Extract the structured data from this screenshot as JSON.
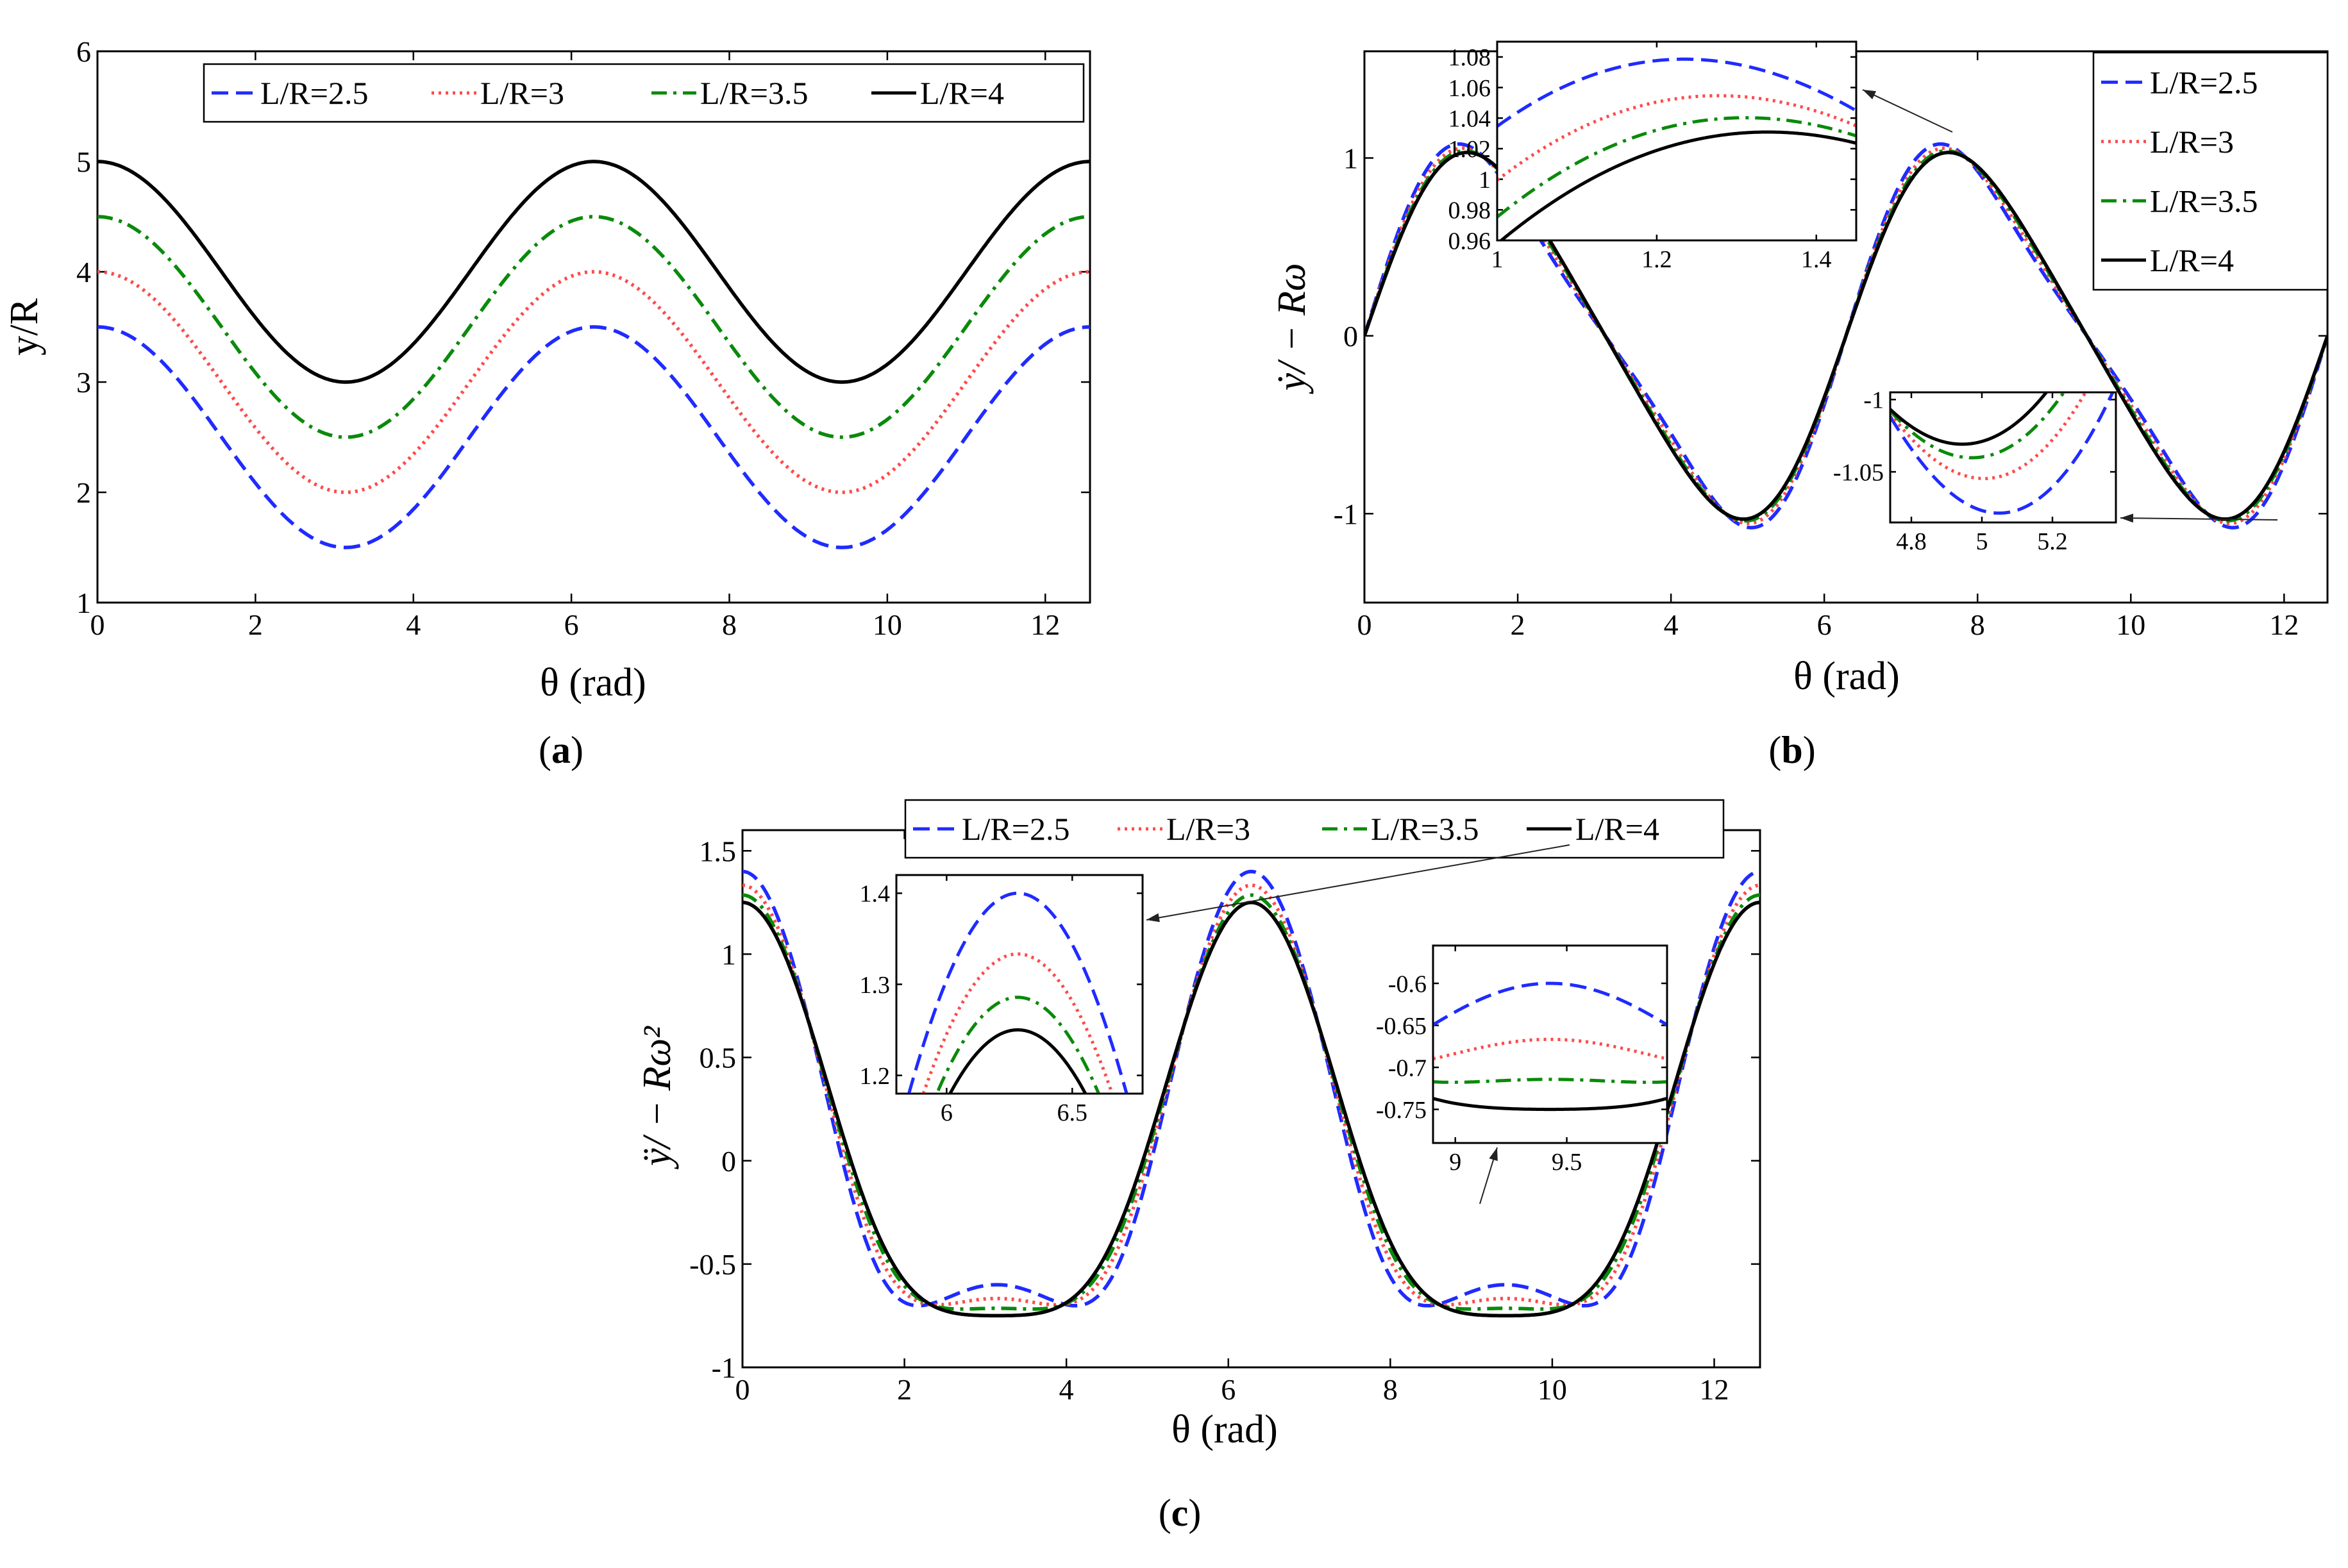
{
  "figure": {
    "labels": {
      "a": "(a)",
      "b": "(b)",
      "c": "(c)"
    },
    "panel_letters": {
      "a": "a",
      "b": "b",
      "c": "c"
    },
    "colors": {
      "L/R=2.5": "#1f2bff",
      "L/R=3": "#ff4a4a",
      "L/R=3.5": "#0a8a0a",
      "L/R=4": "#000000"
    }
  },
  "chart_data": [
    {
      "id": "a",
      "type": "line",
      "title": "",
      "xlabel": "θ (rad)",
      "ylabel": "y/R",
      "xlim": [
        0,
        12.566
      ],
      "ylim": [
        1,
        6
      ],
      "xticks": [
        0,
        2,
        4,
        6,
        8,
        10,
        12
      ],
      "yticks": [
        1,
        2,
        3,
        4,
        5,
        6
      ],
      "legend": {
        "placement": "top",
        "layout": "horizontal"
      },
      "formula": "y/R = cos(theta) + L/R",
      "series": [
        {
          "name": "L/R=2.5",
          "L_over_R": 2.5,
          "style": "dashed",
          "color": "#1f2bff"
        },
        {
          "name": "L/R=3",
          "L_over_R": 3,
          "style": "dotted",
          "color": "#ff4a4a"
        },
        {
          "name": "L/R=3.5",
          "L_over_R": 3.5,
          "style": "dashdot",
          "color": "#0a8a0a"
        },
        {
          "name": "L/R=4",
          "L_over_R": 4,
          "style": "solid",
          "color": "#000000"
        }
      ]
    },
    {
      "id": "b",
      "type": "line",
      "title": "",
      "xlabel": "θ (rad)",
      "ylabel": "ẏ/ − Rω",
      "xlim": [
        0,
        12.566
      ],
      "ylim": [
        -1.5,
        1.6
      ],
      "xticks": [
        0,
        2,
        4,
        6,
        8,
        10,
        12
      ],
      "yticks": [
        -1,
        0,
        1
      ],
      "legend": {
        "placement": "top-right",
        "layout": "vertical"
      },
      "formula": "v = sin(theta) + sin(2theta) / (2 sqrt((L/R)^2 - sin^2(theta)))",
      "series": [
        {
          "name": "L/R=2.5",
          "L_over_R": 2.5,
          "style": "dashed",
          "color": "#1f2bff"
        },
        {
          "name": "L/R=3",
          "L_over_R": 3,
          "style": "dotted",
          "color": "#ff4a4a"
        },
        {
          "name": "L/R=3.5",
          "L_over_R": 3.5,
          "style": "dashdot",
          "color": "#0a8a0a"
        },
        {
          "name": "L/R=4",
          "L_over_R": 4,
          "style": "solid",
          "color": "#000000"
        }
      ],
      "insets": [
        {
          "xlim": [
            1,
            1.45
          ],
          "ylim": [
            0.96,
            1.09
          ],
          "xticks": [
            1,
            1.2,
            1.4
          ],
          "xtick_labels": [
            "1",
            "1.2",
            "1.4"
          ],
          "yticks": [
            0.96,
            0.98,
            1,
            1.02,
            1.04,
            1.06,
            1.08
          ],
          "ytick_labels": [
            "0.96",
            "0.98",
            "1",
            "1.02",
            "1.04",
            "1.06",
            "1.08"
          ]
        },
        {
          "xlim": [
            4.74,
            5.38
          ],
          "ylim": [
            -1.085,
            -0.995
          ],
          "xticks": [
            4.8,
            5,
            5.2
          ],
          "xtick_labels": [
            "4.8",
            "5",
            "5.2"
          ],
          "yticks": [
            -1,
            -1.05
          ],
          "ytick_labels": [
            "-1",
            "-1.05"
          ]
        }
      ]
    },
    {
      "id": "c",
      "type": "line",
      "title": "",
      "xlabel": "θ (rad)",
      "ylabel": "ÿ/ − Rω²",
      "xlim": [
        0,
        12.566
      ],
      "ylim": [
        -1,
        1.6
      ],
      "xticks": [
        0,
        2,
        4,
        6,
        8,
        10,
        12
      ],
      "yticks": [
        -1,
        -0.5,
        0,
        0.5,
        1,
        1.5
      ],
      "ytick_labels": [
        "-1",
        "-0.5",
        "0",
        "0.5",
        "1",
        "1.5"
      ],
      "legend": {
        "placement": "top",
        "layout": "horizontal"
      },
      "formula": "a = cos(theta) + cos(2theta)/sqrt(k^2 - sin^2) + sin^2(2theta)/(4 (k^2 - sin^2)^1.5)",
      "series": [
        {
          "name": "L/R=2.5",
          "L_over_R": 2.5,
          "style": "dashed",
          "color": "#1f2bff"
        },
        {
          "name": "L/R=3",
          "L_over_R": 3,
          "style": "dotted",
          "color": "#ff4a4a"
        },
        {
          "name": "L/R=3.5",
          "L_over_R": 3.5,
          "style": "dashdot",
          "color": "#0a8a0a"
        },
        {
          "name": "L/R=4",
          "L_over_R": 4,
          "style": "solid",
          "color": "#000000"
        }
      ],
      "insets": [
        {
          "xlim": [
            5.8,
            6.78
          ],
          "ylim": [
            1.18,
            1.42
          ],
          "xticks": [
            6,
            6.5
          ],
          "xtick_labels": [
            "6",
            "6.5"
          ],
          "yticks": [
            1.2,
            1.3,
            1.4
          ],
          "ytick_labels": [
            "1.2",
            "1.3",
            "1.4"
          ]
        },
        {
          "xlim": [
            8.9,
            9.95
          ],
          "ylim": [
            -0.79,
            -0.555
          ],
          "xticks": [
            9,
            9.5
          ],
          "xtick_labels": [
            "9",
            "9.5"
          ],
          "yticks": [
            -0.6,
            -0.65,
            -0.7,
            -0.75
          ],
          "ytick_labels": [
            "-0.6",
            "-0.65",
            "-0.7",
            "-0.75"
          ]
        }
      ]
    }
  ]
}
